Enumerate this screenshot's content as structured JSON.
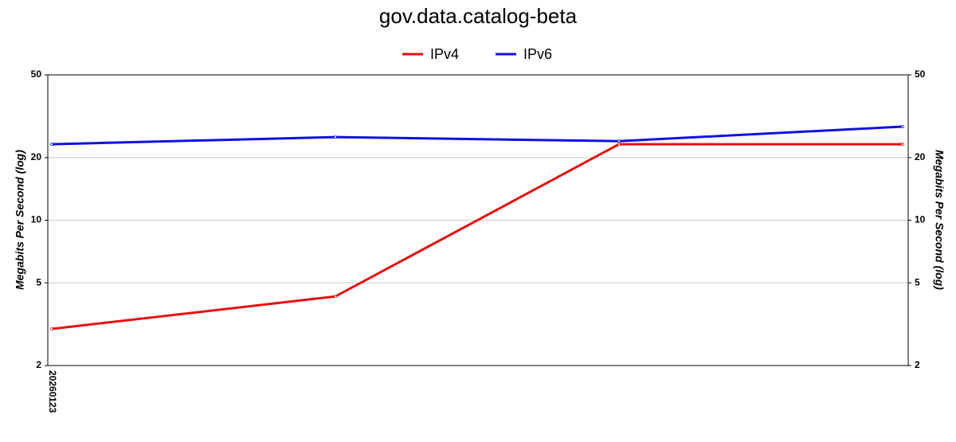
{
  "chart_data": {
    "type": "line",
    "title": "gov.data.catalog-beta",
    "categories": [
      "20260123",
      null,
      null,
      null
    ],
    "series": [
      {
        "name": "IPv4",
        "color": "#e81010",
        "values": [
          3.0,
          4.3,
          23.2,
          23.2
        ]
      },
      {
        "name": "IPv6",
        "color": "#1010e0",
        "values": [
          23.2,
          25.1,
          24.0,
          28.2
        ]
      }
    ],
    "ylabel": "Megabits Per Second (log)",
    "y2label": "Megabits Per Second (log)",
    "log_scale": true,
    "ylim": [
      2,
      50
    ],
    "yticks": [
      2,
      5,
      10,
      20,
      50
    ],
    "y2lim": [
      2,
      50
    ],
    "y2ticks": [
      2,
      5,
      10,
      20,
      50
    ],
    "grid": true,
    "legend": "top"
  }
}
